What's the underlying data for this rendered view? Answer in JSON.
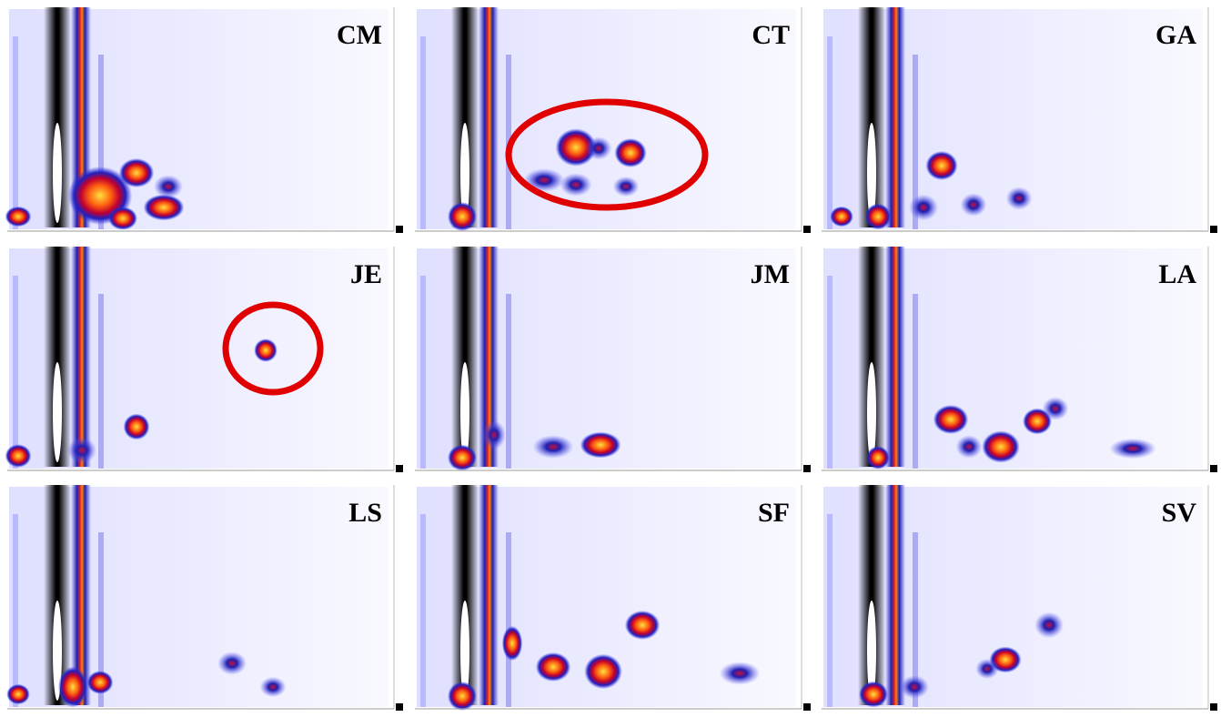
{
  "panels": [
    {
      "label": "CM"
    },
    {
      "label": "CT"
    },
    {
      "label": "GA"
    },
    {
      "label": "JE"
    },
    {
      "label": "JM"
    },
    {
      "label": "LA"
    },
    {
      "label": "LS"
    },
    {
      "label": "SF"
    },
    {
      "label": "SV"
    }
  ]
}
